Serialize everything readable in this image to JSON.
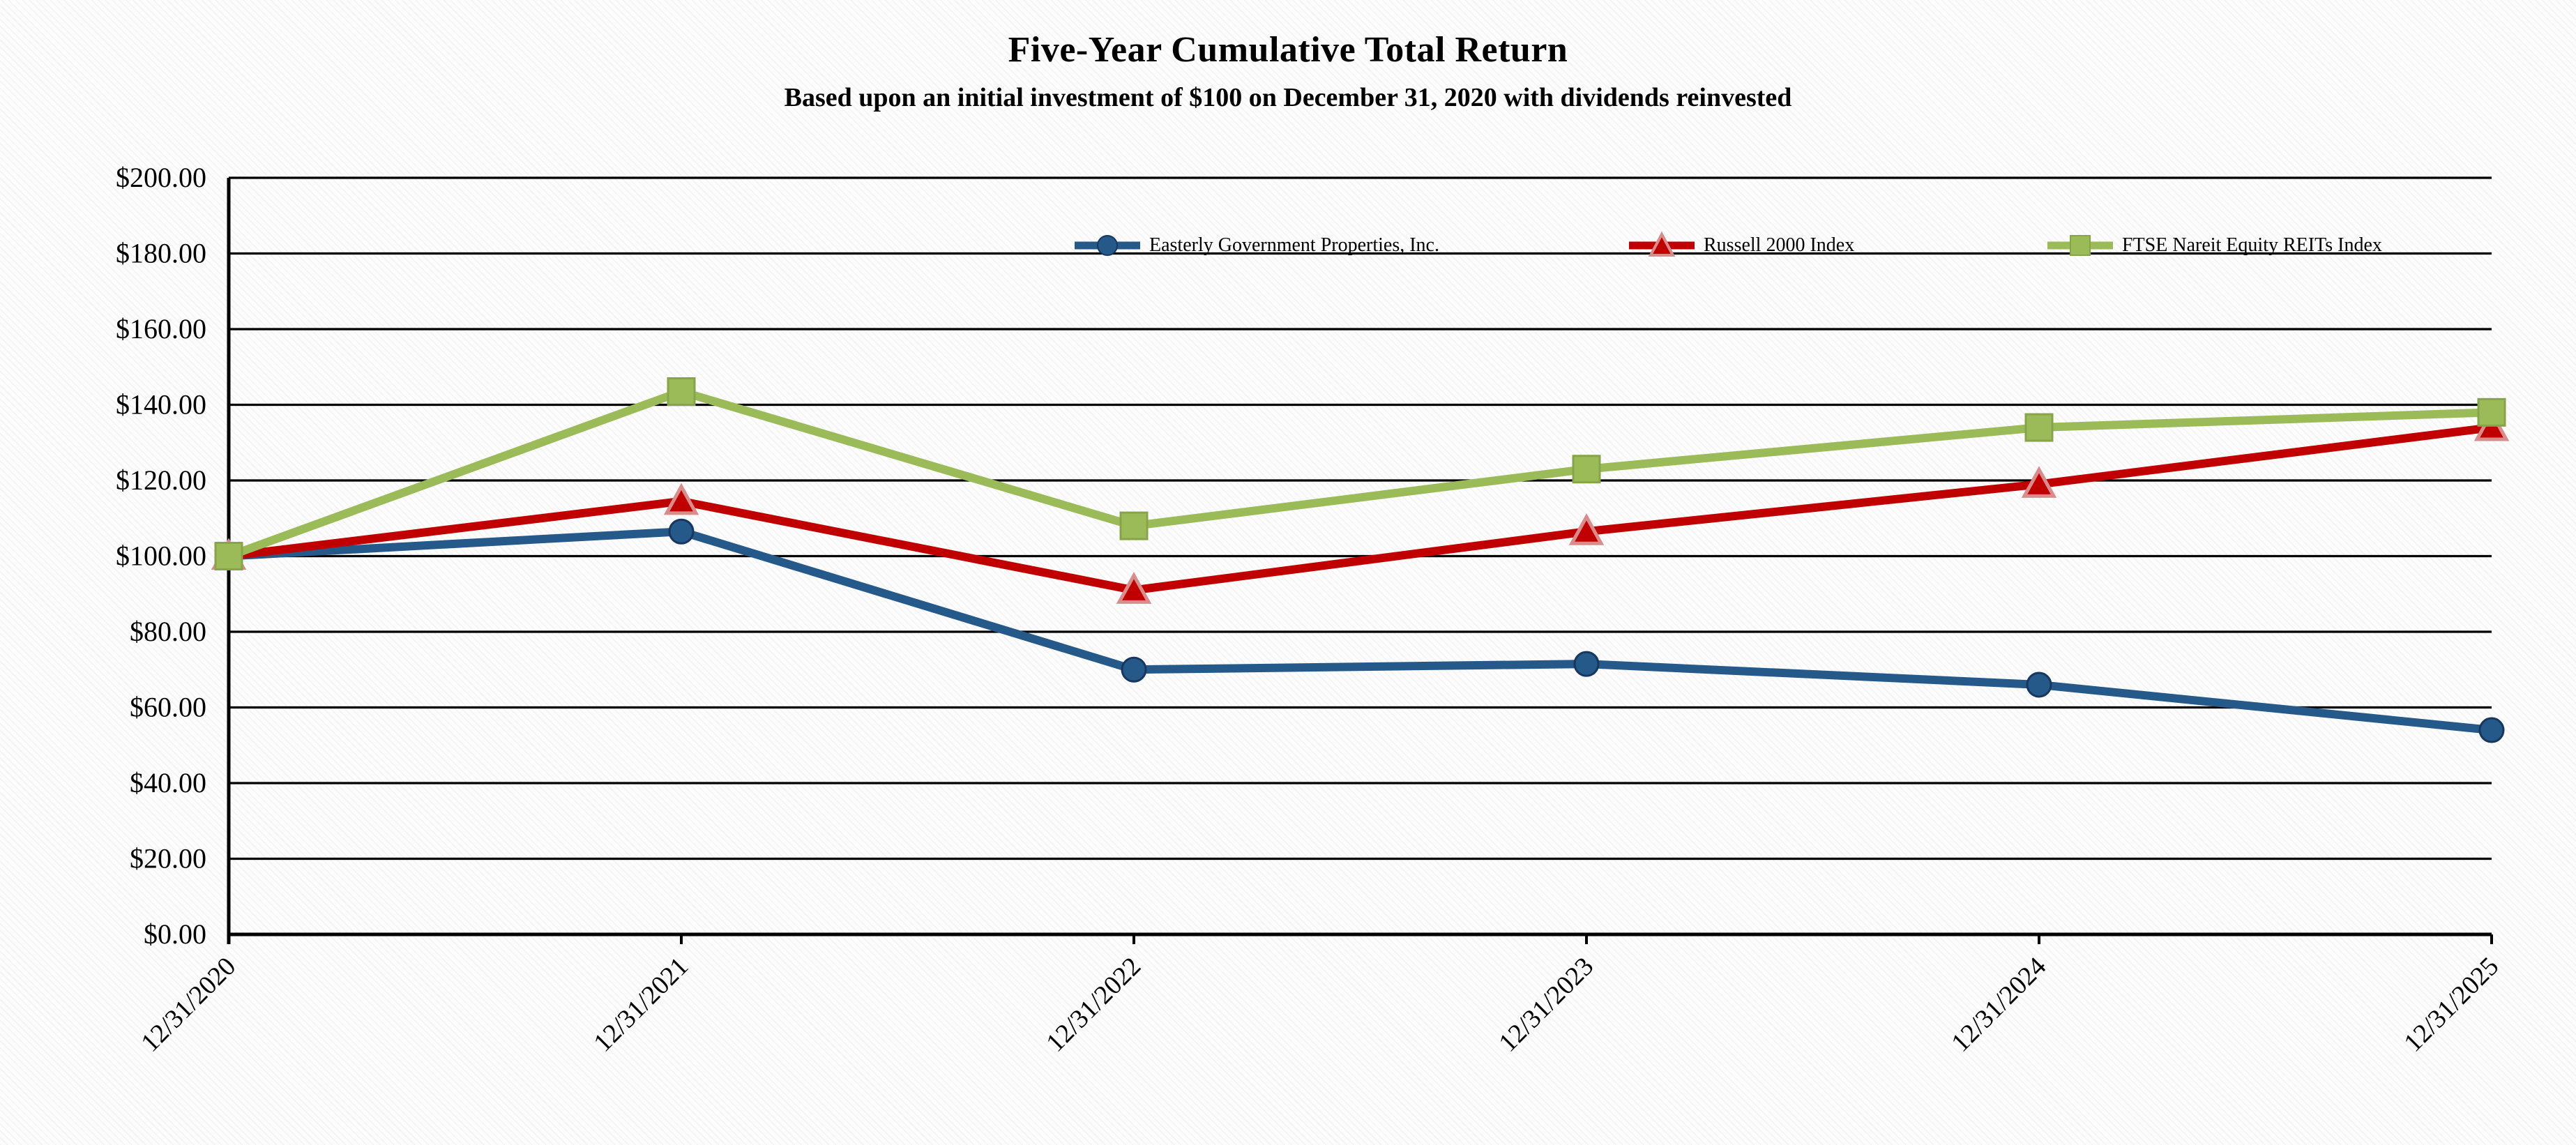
{
  "chart": {
    "title": "Five-Year Cumulative Total Return",
    "subtitle": "Based upon an initial investment of $100 on December 31, 2020 with dividends reinvested"
  },
  "chart_data": {
    "type": "line",
    "title": "Five-Year Cumulative Total Return",
    "subtitle": "Based upon an initial investment of $100 on December 31, 2020 with dividends reinvested",
    "x_labels": [
      "12/31/2020",
      "12/31/2021",
      "12/31/2022",
      "12/31/2023",
      "12/31/2024",
      "12/31/2025"
    ],
    "series": [
      {
        "id": "easterly",
        "name": "Easterly Government Properties, Inc.",
        "marker": "circle",
        "color": "#24598A",
        "marker_stroke": "#17375E",
        "values": [
          100.0,
          106.5,
          70.0,
          71.5,
          66.0,
          54.0
        ]
      },
      {
        "id": "russell-2000",
        "name": "Russell 2000 Index",
        "marker": "triangle",
        "color": "#C00000",
        "marker_stroke": "#D98C8C",
        "values": [
          100.0,
          114.5,
          91.0,
          106.5,
          119.0,
          134.0
        ]
      },
      {
        "id": "ftse-nareit",
        "name": "FTSE Nareit Equity REITs Index",
        "marker": "square",
        "color": "#9BBB59",
        "marker_stroke": "#87A44B",
        "values": [
          100.0,
          143.5,
          108.0,
          123.0,
          134.0,
          138.0
        ]
      }
    ],
    "y_ticks": [
      {
        "value": 0,
        "label": "$0.00"
      },
      {
        "value": 20,
        "label": "$20.00"
      },
      {
        "value": 40,
        "label": "$40.00"
      },
      {
        "value": 60,
        "label": "$60.00"
      },
      {
        "value": 80,
        "label": "$80.00"
      },
      {
        "value": 100,
        "label": "$100.00"
      },
      {
        "value": 120,
        "label": "$120.00"
      },
      {
        "value": 140,
        "label": "$140.00"
      },
      {
        "value": 160,
        "label": "$160.00"
      },
      {
        "value": 180,
        "label": "$180.00"
      },
      {
        "value": 200,
        "label": "$200.00"
      }
    ],
    "ylim": [
      0,
      200
    ],
    "ytick_step": 20,
    "grid": "horizontal",
    "legend_position": "top-center-inside",
    "text_color": "#000000",
    "grid_color": "#000000"
  }
}
